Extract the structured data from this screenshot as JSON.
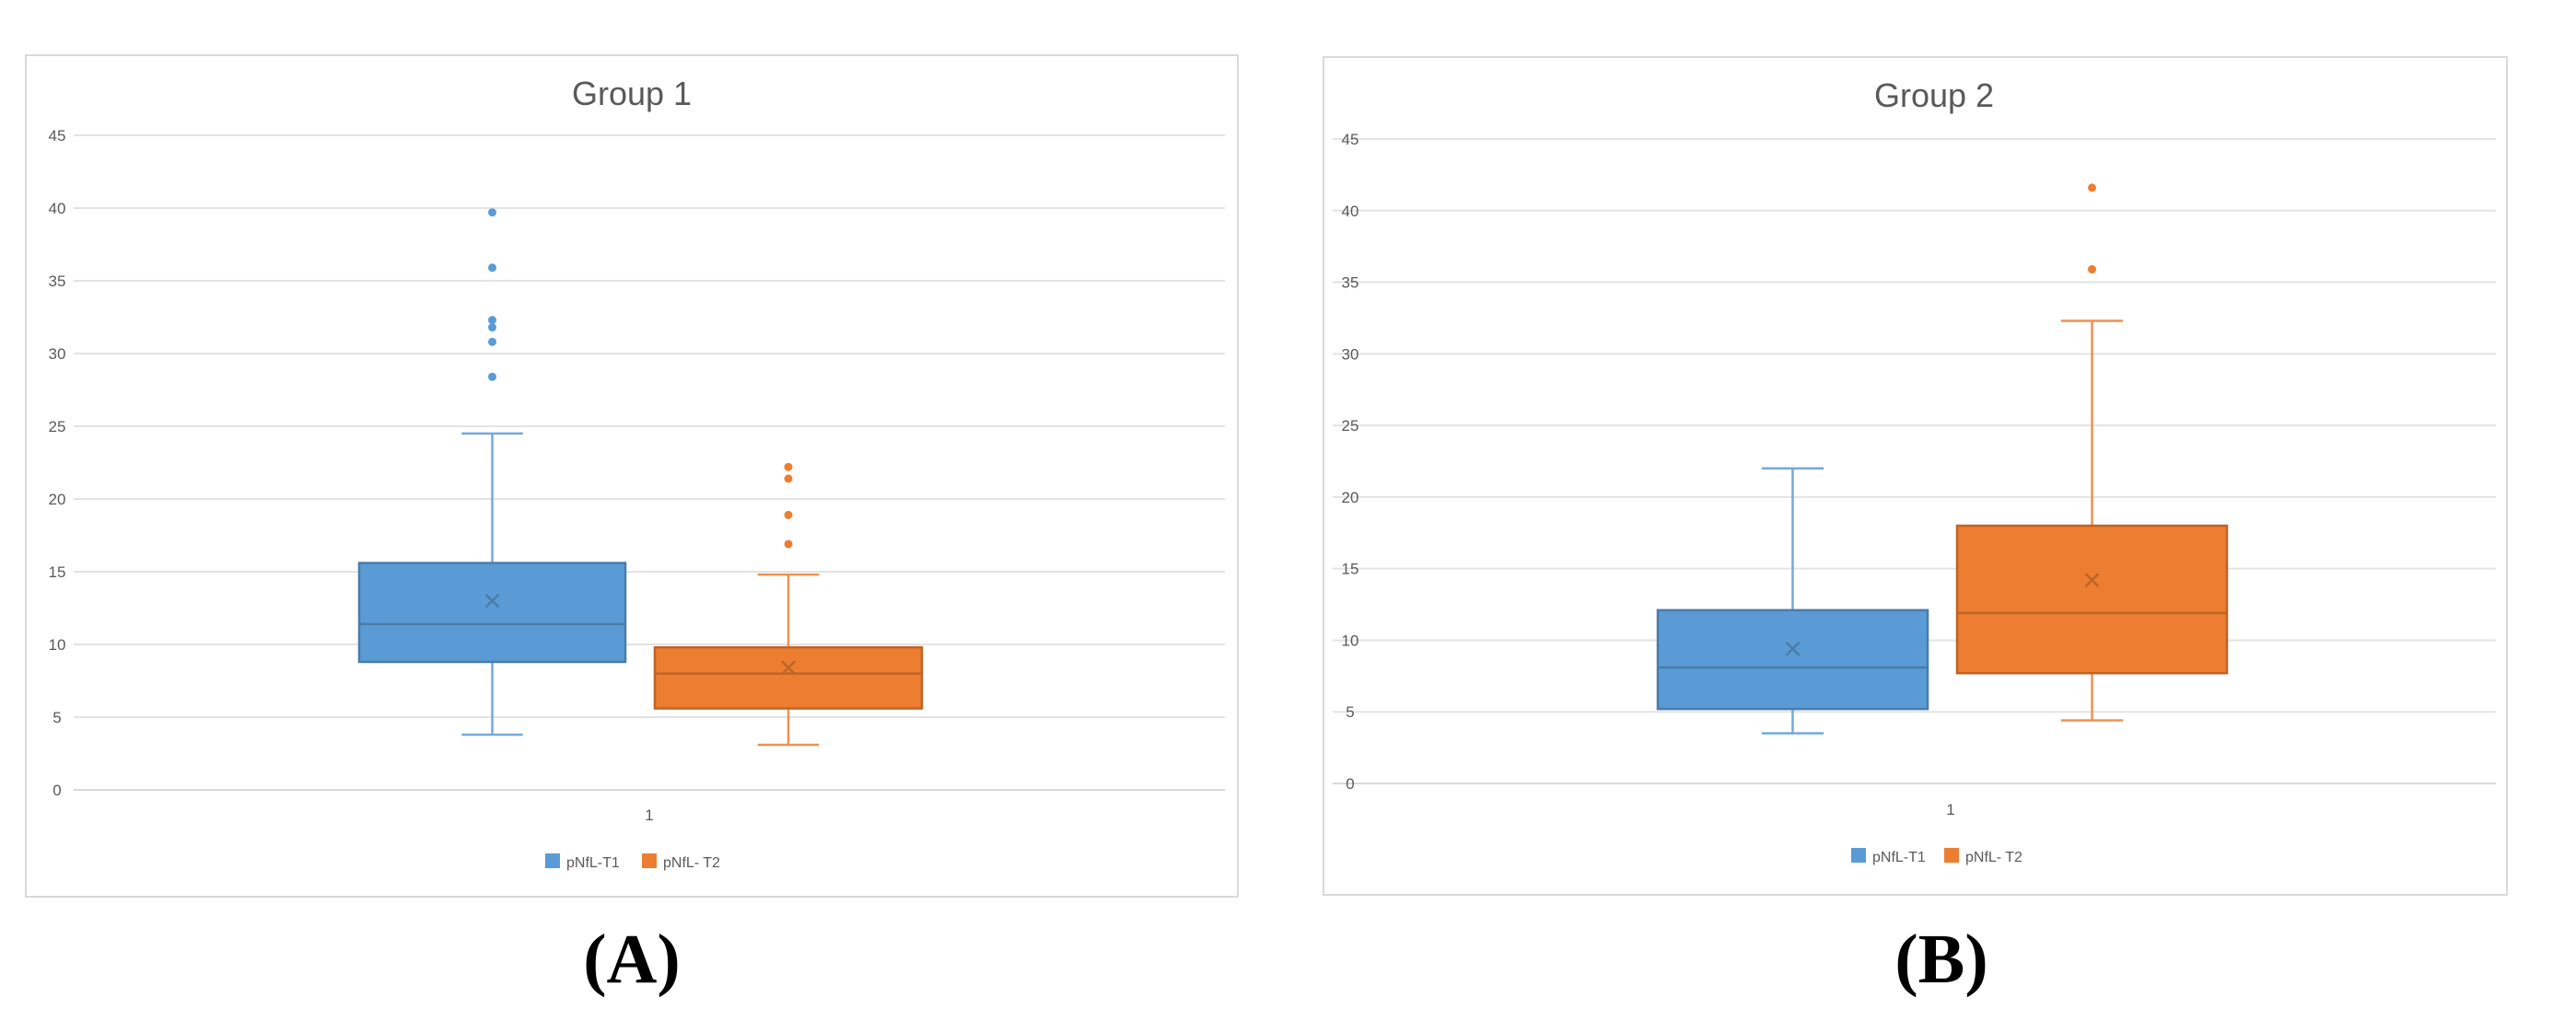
{
  "chart_data": [
    {
      "type": "box",
      "panel_label": "(A)",
      "title": "Group 1",
      "categories": [
        "1"
      ],
      "ylim": [
        0,
        45
      ],
      "yticks": [
        0,
        5,
        10,
        15,
        20,
        25,
        30,
        35,
        40,
        45
      ],
      "grid": true,
      "legend_position": "bottom",
      "series": [
        {
          "name": "pNfL-T1",
          "color": "#5b9bd5",
          "whisker_low": 3.8,
          "q1": 8.8,
          "median": 11.4,
          "q3": 15.6,
          "whisker_high": 24.5,
          "mean": 13.0,
          "outliers": [
            28.4,
            30.8,
            31.8,
            32.3,
            35.9,
            39.7
          ]
        },
        {
          "name": "pNfL- T2",
          "color": "#ed7d31",
          "whisker_low": 3.1,
          "q1": 5.6,
          "median": 8.0,
          "q3": 9.8,
          "whisker_high": 14.8,
          "mean": 8.4,
          "outliers": [
            16.9,
            18.9,
            21.4,
            22.2
          ]
        }
      ]
    },
    {
      "type": "box",
      "panel_label": "(B)",
      "title": "Group 2",
      "categories": [
        "1"
      ],
      "ylim": [
        0,
        45
      ],
      "yticks": [
        0,
        5,
        10,
        15,
        20,
        25,
        30,
        35,
        40,
        45
      ],
      "grid": true,
      "legend_position": "bottom",
      "series": [
        {
          "name": "pNfL-T1",
          "color": "#5b9bd5",
          "whisker_low": 3.5,
          "q1": 5.2,
          "median": 8.1,
          "q3": 12.1,
          "whisker_high": 22.0,
          "mean": 9.4,
          "outliers": []
        },
        {
          "name": "pNfL- T2",
          "color": "#ed7d31",
          "whisker_low": 4.4,
          "q1": 7.7,
          "median": 11.9,
          "q3": 18.0,
          "whisker_high": 32.3,
          "mean": 14.2,
          "outliers": [
            35.9,
            41.6
          ]
        }
      ]
    }
  ]
}
